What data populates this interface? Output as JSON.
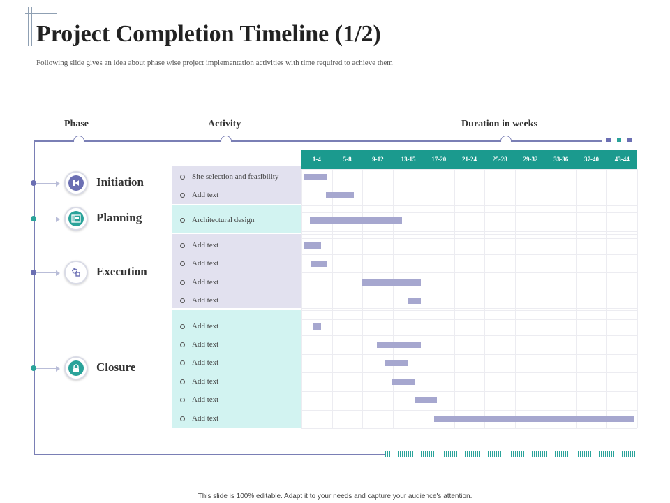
{
  "title": "Project Completion Timeline (1/2)",
  "subtitle": "Following slide gives an idea about phase wise project implementation activities  with time required  to achieve  them",
  "headers": {
    "phase": "Phase",
    "activity": "Activity",
    "duration": "Duration in weeks"
  },
  "weeks": [
    "1-4",
    "5-8",
    "9-12",
    "13-15",
    "17-20",
    "21-24",
    "25-28",
    "29-32",
    "33-36",
    "37-40",
    "43-44"
  ],
  "phases": [
    {
      "name": "Initiation",
      "icon": "skip-back-icon",
      "color": "#6b6fb3"
    },
    {
      "name": "Planning",
      "icon": "blueprint-icon",
      "color": "#2aa39a"
    },
    {
      "name": "Execution",
      "icon": "gear-chip-icon",
      "color": "#6b6fb3"
    },
    {
      "name": "Closure",
      "icon": "lock-icon",
      "color": "#2aa39a"
    }
  ],
  "activities": [
    {
      "label": "Site selection  and feasibility",
      "phase": 0,
      "start_week": 1,
      "end_week": 4
    },
    {
      "label": "Add text",
      "phase": 0,
      "start_week": 3.8,
      "end_week": 7.5
    },
    {
      "label": "Architectural  design",
      "phase": 1,
      "start_week": 1.7,
      "end_week": 13.8
    },
    {
      "label": "Add text",
      "phase": 2,
      "start_week": 1,
      "end_week": 3.2
    },
    {
      "label": "Add text",
      "phase": 2,
      "start_week": 1.8,
      "end_week": 4
    },
    {
      "label": "Add text",
      "phase": 2,
      "start_week": 8.5,
      "end_week": 16.2
    },
    {
      "label": "Add text",
      "phase": 2,
      "start_week": 14.5,
      "end_week": 16.2
    },
    {
      "label": "Add text",
      "phase": 3,
      "start_week": 2.2,
      "end_week": 3.2
    },
    {
      "label": "Add text",
      "phase": 3,
      "start_week": 10.5,
      "end_week": 16.2
    },
    {
      "label": "Add text",
      "phase": 3,
      "start_week": 11.6,
      "end_week": 14.5
    },
    {
      "label": "Add text",
      "phase": 3,
      "start_week": 12.5,
      "end_week": 15.4
    },
    {
      "label": "Add text",
      "phase": 3,
      "start_week": 15.4,
      "end_week": 18.3
    },
    {
      "label": "Add text",
      "phase": 3,
      "start_week": 17.9,
      "end_week": 44
    }
  ],
  "footer": "This slide is 100% editable. Adapt it to your needs and capture your audience's attention."
}
